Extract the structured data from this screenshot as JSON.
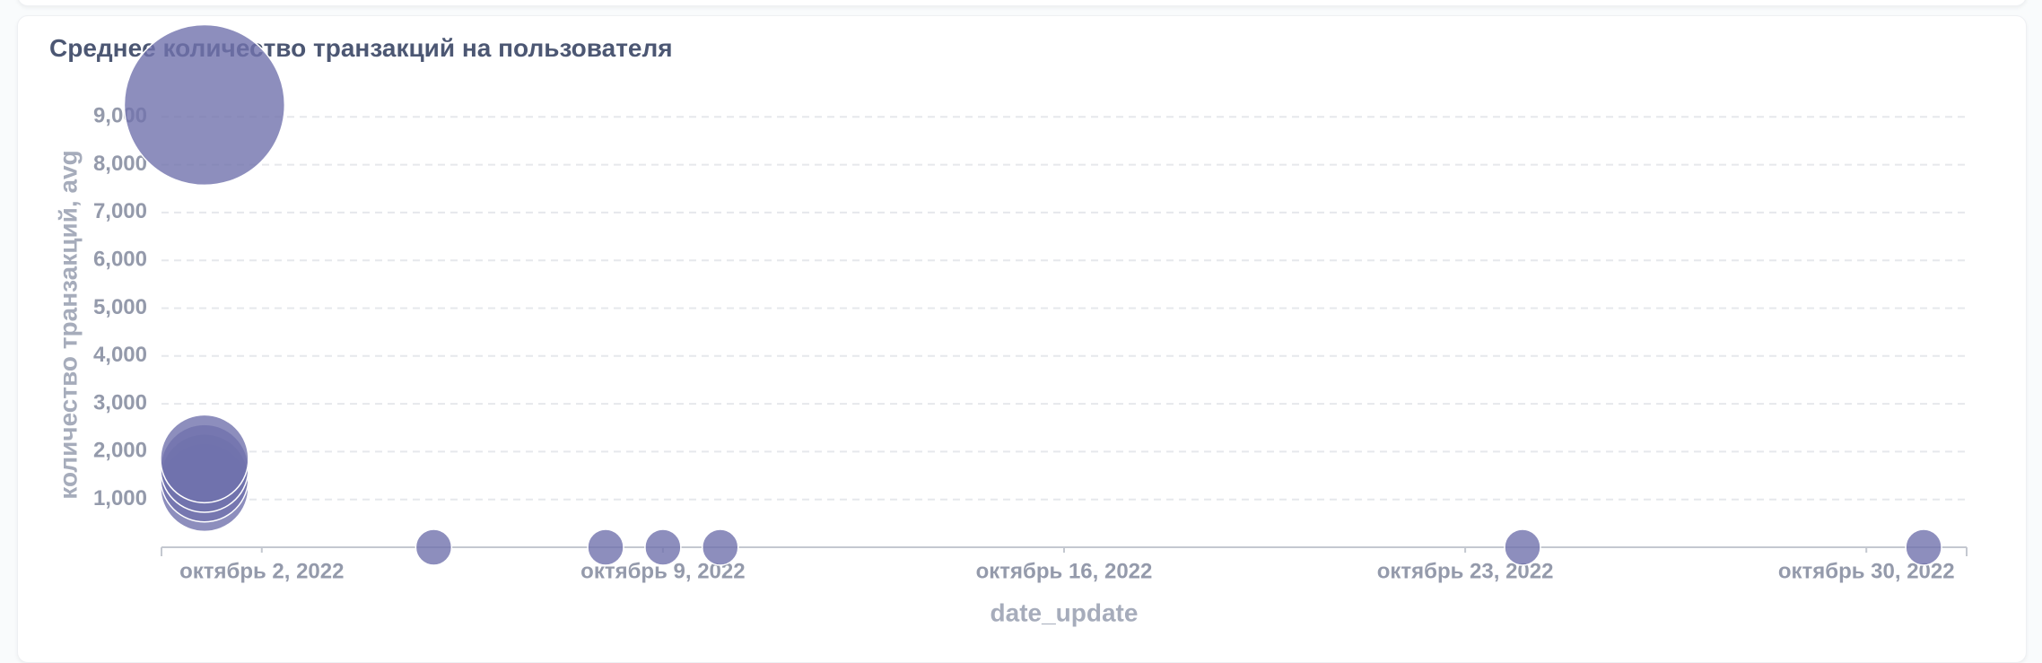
{
  "chart_data": {
    "type": "bubble",
    "title": "Среднее количество транзакций на пользователя",
    "x_label": "date_update",
    "y_label": "количество транзакций, avg",
    "x": [
      "2022-10-01",
      "2022-10-01",
      "2022-10-01",
      "2022-10-01",
      "2022-10-01",
      "2022-10-05",
      "2022-10-08",
      "2022-10-09",
      "2022-10-10",
      "2022-10-24",
      "2022-10-31"
    ],
    "values": [
      9250,
      1250,
      1450,
      1650,
      1850,
      0,
      0,
      0,
      0,
      0,
      0
    ],
    "sizes": [
      20,
      6,
      6,
      6,
      6,
      1,
      1,
      1,
      1,
      1,
      1
    ],
    "color": "#7172ad",
    "xlim": [
      "2022-09-30T06:00:00Z",
      "2022-10-31T18:00:00Z"
    ],
    "xticks": [
      {
        "value": "2022-10-02",
        "label": "октябрь 2, 2022"
      },
      {
        "value": "2022-10-09",
        "label": "октябрь 9, 2022"
      },
      {
        "value": "2022-10-16",
        "label": "октябрь 16, 2022"
      },
      {
        "value": "2022-10-23",
        "label": "октябрь 23, 2022"
      },
      {
        "value": "2022-10-30",
        "label": "октябрь 30, 2022"
      }
    ],
    "ylim": [
      0,
      10000
    ],
    "yticks": [
      {
        "value": 1000,
        "label": "1,000"
      },
      {
        "value": 2000,
        "label": "2,000"
      },
      {
        "value": 3000,
        "label": "3,000"
      },
      {
        "value": 4000,
        "label": "4,000"
      },
      {
        "value": 5000,
        "label": "5,000"
      },
      {
        "value": 6000,
        "label": "6,000"
      },
      {
        "value": 7000,
        "label": "7,000"
      },
      {
        "value": 8000,
        "label": "8,000"
      },
      {
        "value": 9000,
        "label": "9,000"
      }
    ],
    "grid": true
  }
}
